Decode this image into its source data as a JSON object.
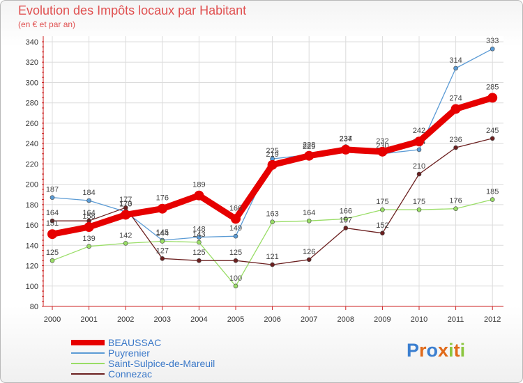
{
  "title": "Evolution des Impôts locaux par Habitant",
  "subtitle": "(en € et par an)",
  "logo": {
    "text": "Proxiti"
  },
  "chart_data": {
    "type": "line",
    "title": "Evolution des Impôts locaux par Habitant",
    "subtitle": "(en € et par an)",
    "xlabel": "",
    "ylabel": "",
    "ylim": [
      80,
      340
    ],
    "yticks": [
      80,
      100,
      120,
      140,
      160,
      180,
      200,
      220,
      240,
      260,
      280,
      300,
      320,
      340
    ],
    "x": [
      "2000",
      "2001",
      "2002",
      "2003",
      "2004",
      "2005",
      "2006",
      "2007",
      "2008",
      "2009",
      "2010",
      "2011",
      "2012"
    ],
    "series": [
      {
        "name": "BEAUSSAC",
        "color": "#e60000",
        "thick": true,
        "values": [
          151,
          158,
          170,
          176,
          189,
          166,
          219,
          228,
          234,
          232,
          242,
          274,
          285
        ]
      },
      {
        "name": "Puyrenier",
        "color": "#5b9bd5",
        "thick": false,
        "values": [
          187,
          184,
          173,
          145,
          148,
          149,
          225,
          229,
          237,
          230,
          234,
          314,
          333
        ]
      },
      {
        "name": "Saint-Sulpice-de-Mareuil",
        "color": "#99dd66",
        "thick": false,
        "values": [
          125,
          139,
          142,
          144,
          143,
          100,
          163,
          164,
          166,
          175,
          175,
          176,
          185
        ]
      },
      {
        "name": "Connezac",
        "color": "#6b1f1f",
        "thick": false,
        "values": [
          164,
          164,
          177,
          127,
          125,
          125,
          121,
          126,
          157,
          152,
          210,
          236,
          245
        ]
      }
    ],
    "legend_position": "bottom-left"
  }
}
